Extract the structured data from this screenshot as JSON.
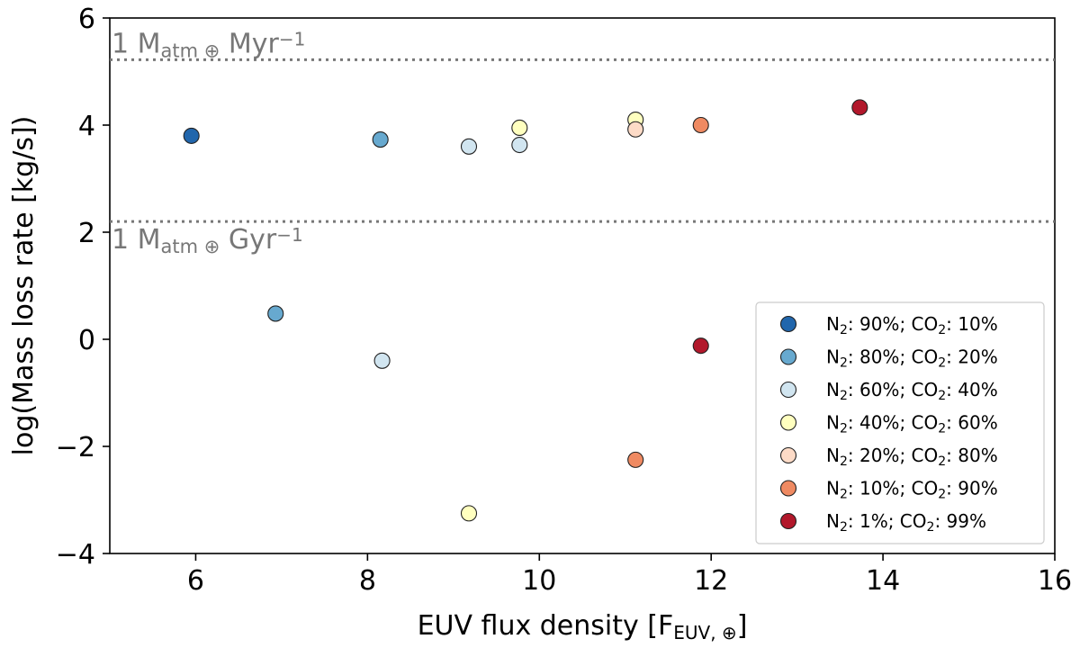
{
  "chart_data": {
    "type": "scatter",
    "xlabel": "EUV flux density [F",
    "xlabel_sub": "EUV, ⊕",
    "xlabel_end": "]",
    "ylabel": "log(Mass loss rate [kg/s])",
    "xlim": [
      5,
      16
    ],
    "ylim": [
      -4,
      6
    ],
    "xticks": [
      6,
      8,
      10,
      12,
      14,
      16
    ],
    "yticks": [
      -4,
      -2,
      0,
      2,
      4,
      6
    ],
    "xtick_labels": [
      "6",
      "8",
      "10",
      "12",
      "14",
      "16"
    ],
    "ytick_labels": [
      "−4",
      "−2",
      "0",
      "2",
      "4",
      "6"
    ],
    "grid": false,
    "legend_position": "lower-right",
    "reference_lines": [
      {
        "y": 5.22,
        "style": "dotted",
        "label": {
          "main": "1 M",
          "sub": "atm ⊕",
          "rest": " Myr",
          "sup": "−1"
        }
      },
      {
        "y": 2.2,
        "style": "dotted",
        "label": {
          "main": "1 M",
          "sub": "atm ⊕",
          "rest": " Gyr",
          "sup": "−1"
        }
      }
    ],
    "series": [
      {
        "name_pre": "N",
        "name_n2": ": 90%; CO",
        "name_co2": ": 10%",
        "color": "#2166ac",
        "points": [
          {
            "x": 5.95,
            "y": 3.8
          }
        ]
      },
      {
        "name_pre": "N",
        "name_n2": ": 80%; CO",
        "name_co2": ": 20%",
        "color": "#67a9cf",
        "points": [
          {
            "x": 8.15,
            "y": 3.73
          },
          {
            "x": 6.93,
            "y": 0.48
          }
        ]
      },
      {
        "name_pre": "N",
        "name_n2": ": 60%; CO",
        "name_co2": ": 40%",
        "color": "#d1e5f0",
        "points": [
          {
            "x": 9.18,
            "y": 3.6
          },
          {
            "x": 9.77,
            "y": 3.63
          },
          {
            "x": 8.17,
            "y": -0.4
          }
        ]
      },
      {
        "name_pre": "N",
        "name_n2": ": 40%; CO",
        "name_co2": ": 60%",
        "color": "#ffffbf",
        "points": [
          {
            "x": 9.77,
            "y": 3.95
          },
          {
            "x": 11.12,
            "y": 4.1
          },
          {
            "x": 9.18,
            "y": -3.25
          }
        ]
      },
      {
        "name_pre": "N",
        "name_n2": ": 20%; CO",
        "name_co2": ": 80%",
        "color": "#fddbc7",
        "points": [
          {
            "x": 11.12,
            "y": 3.92
          }
        ]
      },
      {
        "name_pre": "N",
        "name_n2": ": 10%; CO",
        "name_co2": ": 90%",
        "color": "#ef8a62",
        "points": [
          {
            "x": 11.88,
            "y": 4.0
          },
          {
            "x": 11.12,
            "y": -2.25
          }
        ]
      },
      {
        "name_pre": "N",
        "name_n2": ":  1%; CO",
        "name_co2": ": 99%",
        "color": "#b2182b",
        "points": [
          {
            "x": 13.73,
            "y": 4.33
          },
          {
            "x": 11.88,
            "y": -0.12
          }
        ]
      }
    ]
  }
}
